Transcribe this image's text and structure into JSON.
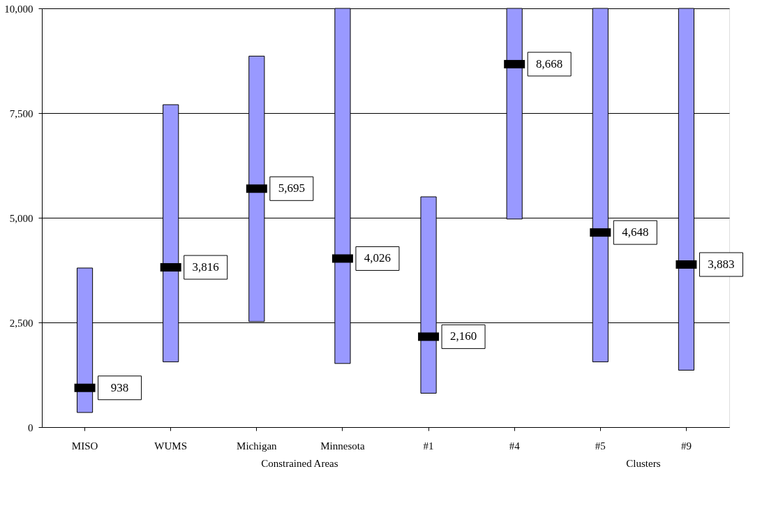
{
  "chart_data": {
    "type": "bar",
    "categories": [
      "MISO",
      "WUMS",
      "Michigan",
      "Minnesota",
      "#1",
      "#4",
      "#5",
      "#9"
    ],
    "series": [
      {
        "color": "#9999ff",
        "base": [
          350,
          1560,
          2520,
          1520,
          810,
          4970,
          1560,
          1360
        ],
        "values": [
          3450,
          6140,
          6340,
          8480,
          4690,
          5030,
          8440,
          8640
        ]
      },
      {
        "type": "scatter",
        "color": "#000000",
        "values": [
          938,
          3816,
          5695,
          4026,
          2160,
          8668,
          4648,
          3883
        ],
        "value_labels": [
          "938",
          "3,816",
          "5,695",
          "4,026",
          "2,160",
          "8,668",
          "4,648",
          "3,883"
        ]
      }
    ],
    "annotations": [
      "Constrained Areas",
      "Clusters"
    ],
    "ylim": [
      0,
      10000
    ],
    "yticks": [
      {
        "value": 0,
        "label": "0"
      },
      {
        "value": 2500,
        "label": "2,500"
      },
      {
        "value": 5000,
        "label": "5,000"
      },
      {
        "value": 7500,
        "label": "7,500"
      },
      {
        "value": 10000,
        "label": "10,000"
      }
    ],
    "grid": "y",
    "legend": false
  }
}
